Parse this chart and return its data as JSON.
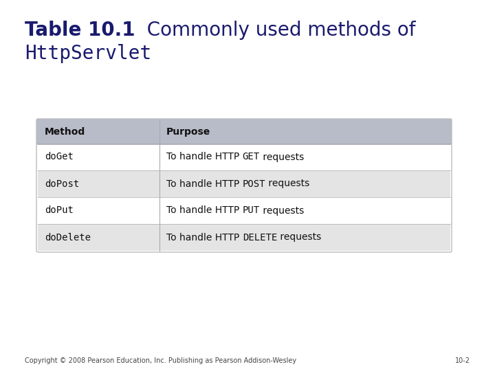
{
  "title_bold": "Table 10.1",
  "title_normal": "  Commonly used methods of",
  "title_mono": "HttpServlet",
  "title_color": "#1a1a6e",
  "bg_color": "#ffffff",
  "header_bg": "#b8bcc8",
  "row_alt_bg": "#e4e4e4",
  "row_bg": "#ffffff",
  "table_border_color": "#aaaaaa",
  "col_headers": [
    "Method",
    "Purpose"
  ],
  "rows": [
    [
      "doGet",
      "To handle HTTP ",
      "GET",
      " requests"
    ],
    [
      "doPost",
      "To handle HTTP ",
      "POST",
      " requests"
    ],
    [
      "doPut",
      "To handle HTTP ",
      "PUT",
      " requests"
    ],
    [
      "doDelete",
      "To handle HTTP ",
      "DELETE",
      " requests"
    ]
  ],
  "footer_left": "Copyright © 2008 Pearson Education, Inc. Publishing as Pearson Addison-Wesley",
  "footer_right": "10-2",
  "footer_color": "#444444",
  "title_fs": 20,
  "mono_title_fs": 20,
  "header_fs": 10,
  "row_fs": 10
}
